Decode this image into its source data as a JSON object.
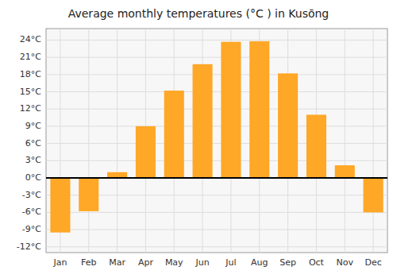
{
  "chart_data": {
    "type": "bar",
    "title": "Average monthly temperatures (°C ) in Kusōng",
    "categories": [
      "Jan",
      "Feb",
      "Mar",
      "Apr",
      "May",
      "Jun",
      "Jul",
      "Aug",
      "Sep",
      "Oct",
      "Nov",
      "Dec"
    ],
    "values": [
      -9.5,
      -5.8,
      1.0,
      9.0,
      15.2,
      19.8,
      23.7,
      23.8,
      18.2,
      11.0,
      2.2,
      -6.0
    ],
    "color": "#FFA726",
    "ylim": [
      -13,
      26
    ],
    "yticks": [
      {
        "value": -12,
        "label": "-12°C"
      },
      {
        "value": -9,
        "label": "-9°C"
      },
      {
        "value": -6,
        "label": "-6°C"
      },
      {
        "value": -3,
        "label": "-3°C"
      },
      {
        "value": 0,
        "label": "0°C"
      },
      {
        "value": 3,
        "label": "3°C"
      },
      {
        "value": 6,
        "label": "6°C"
      },
      {
        "value": 9,
        "label": "9°C"
      },
      {
        "value": 12,
        "label": "12°C"
      },
      {
        "value": 15,
        "label": "15°C"
      },
      {
        "value": 18,
        "label": "18°C"
      },
      {
        "value": 21,
        "label": "21°C"
      },
      {
        "value": 24,
        "label": "24°C"
      }
    ],
    "grid": true
  }
}
